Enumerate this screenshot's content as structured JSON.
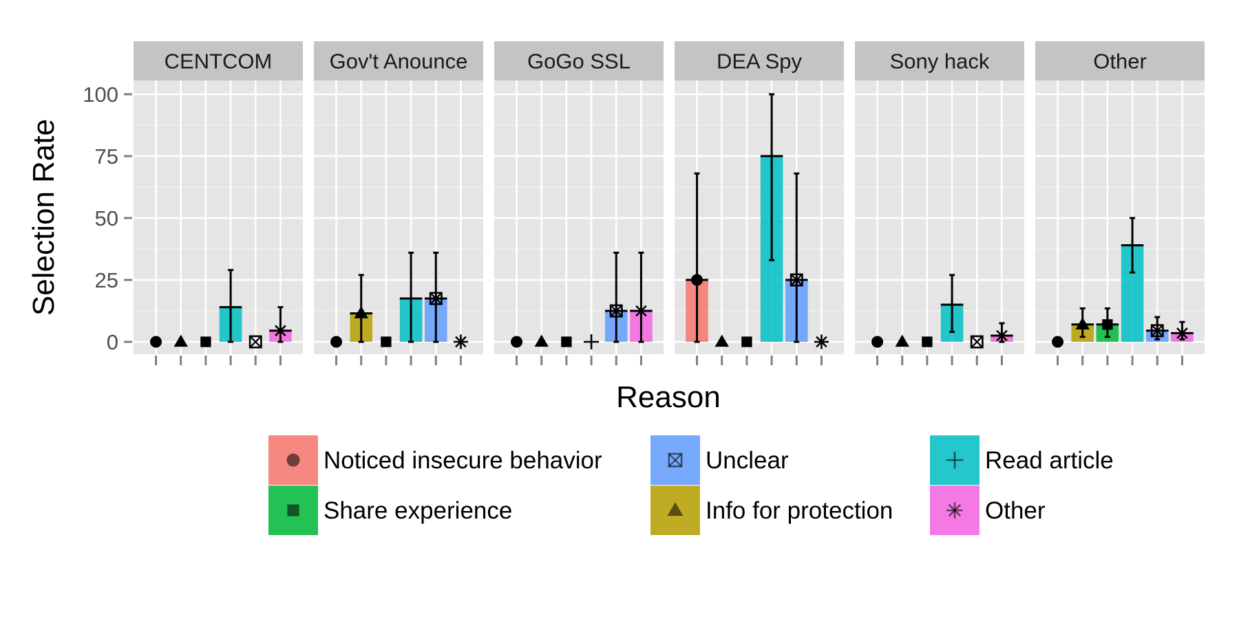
{
  "chart_data": {
    "type": "bar",
    "xlabel": "Reason",
    "ylabel": "Selection Rate",
    "ylim": [
      0,
      110
    ],
    "yticks": [
      0,
      25,
      50,
      75,
      100
    ],
    "grid": true,
    "legend_position": "bottom",
    "categories": [
      "Noticed insecure behavior",
      "Info for protection",
      "Share experience",
      "Read article",
      "Unclear",
      "Other"
    ],
    "colors": [
      "#F8766D",
      "#B79F00",
      "#00BA38",
      "#00BFC4",
      "#619CFF",
      "#F564E3"
    ],
    "markers": [
      "circle",
      "triangle",
      "square",
      "plus",
      "boxed-x",
      "asterisk"
    ],
    "legend_order": [
      0,
      2,
      4,
      1,
      3,
      5
    ],
    "facets": [
      {
        "name": "CENTCOM",
        "values": [
          0,
          0,
          0,
          14,
          0,
          4.5
        ],
        "err_low": [
          null,
          null,
          null,
          0,
          null,
          0
        ],
        "err_high": [
          null,
          null,
          null,
          29,
          null,
          14
        ]
      },
      {
        "name": "Gov't Anounce",
        "values": [
          0,
          11.5,
          0,
          17.5,
          17.5,
          0
        ],
        "err_low": [
          null,
          0,
          null,
          0,
          0,
          null
        ],
        "err_high": [
          null,
          27,
          null,
          36,
          36,
          null
        ]
      },
      {
        "name": "GoGo SSL",
        "values": [
          0,
          0,
          0,
          0,
          12.5,
          12.5
        ],
        "err_low": [
          null,
          null,
          null,
          null,
          0,
          0
        ],
        "err_high": [
          null,
          null,
          null,
          null,
          36,
          36
        ]
      },
      {
        "name": "DEA Spy",
        "values": [
          25,
          0,
          0,
          75,
          25,
          0
        ],
        "err_low": [
          0,
          null,
          null,
          33,
          0,
          null
        ],
        "err_high": [
          68,
          null,
          null,
          100,
          68,
          null
        ]
      },
      {
        "name": "Sony hack",
        "values": [
          0,
          0,
          0,
          15,
          0,
          2.5
        ],
        "err_low": [
          null,
          null,
          null,
          4,
          null,
          0
        ],
        "err_high": [
          null,
          null,
          null,
          27,
          null,
          7.5
        ]
      },
      {
        "name": "Other",
        "values": [
          0,
          7,
          7,
          39,
          4.5,
          3.5
        ],
        "err_low": [
          null,
          2,
          2,
          28,
          1,
          1
        ],
        "err_high": [
          null,
          13.5,
          13.5,
          50,
          10,
          8
        ]
      }
    ]
  }
}
